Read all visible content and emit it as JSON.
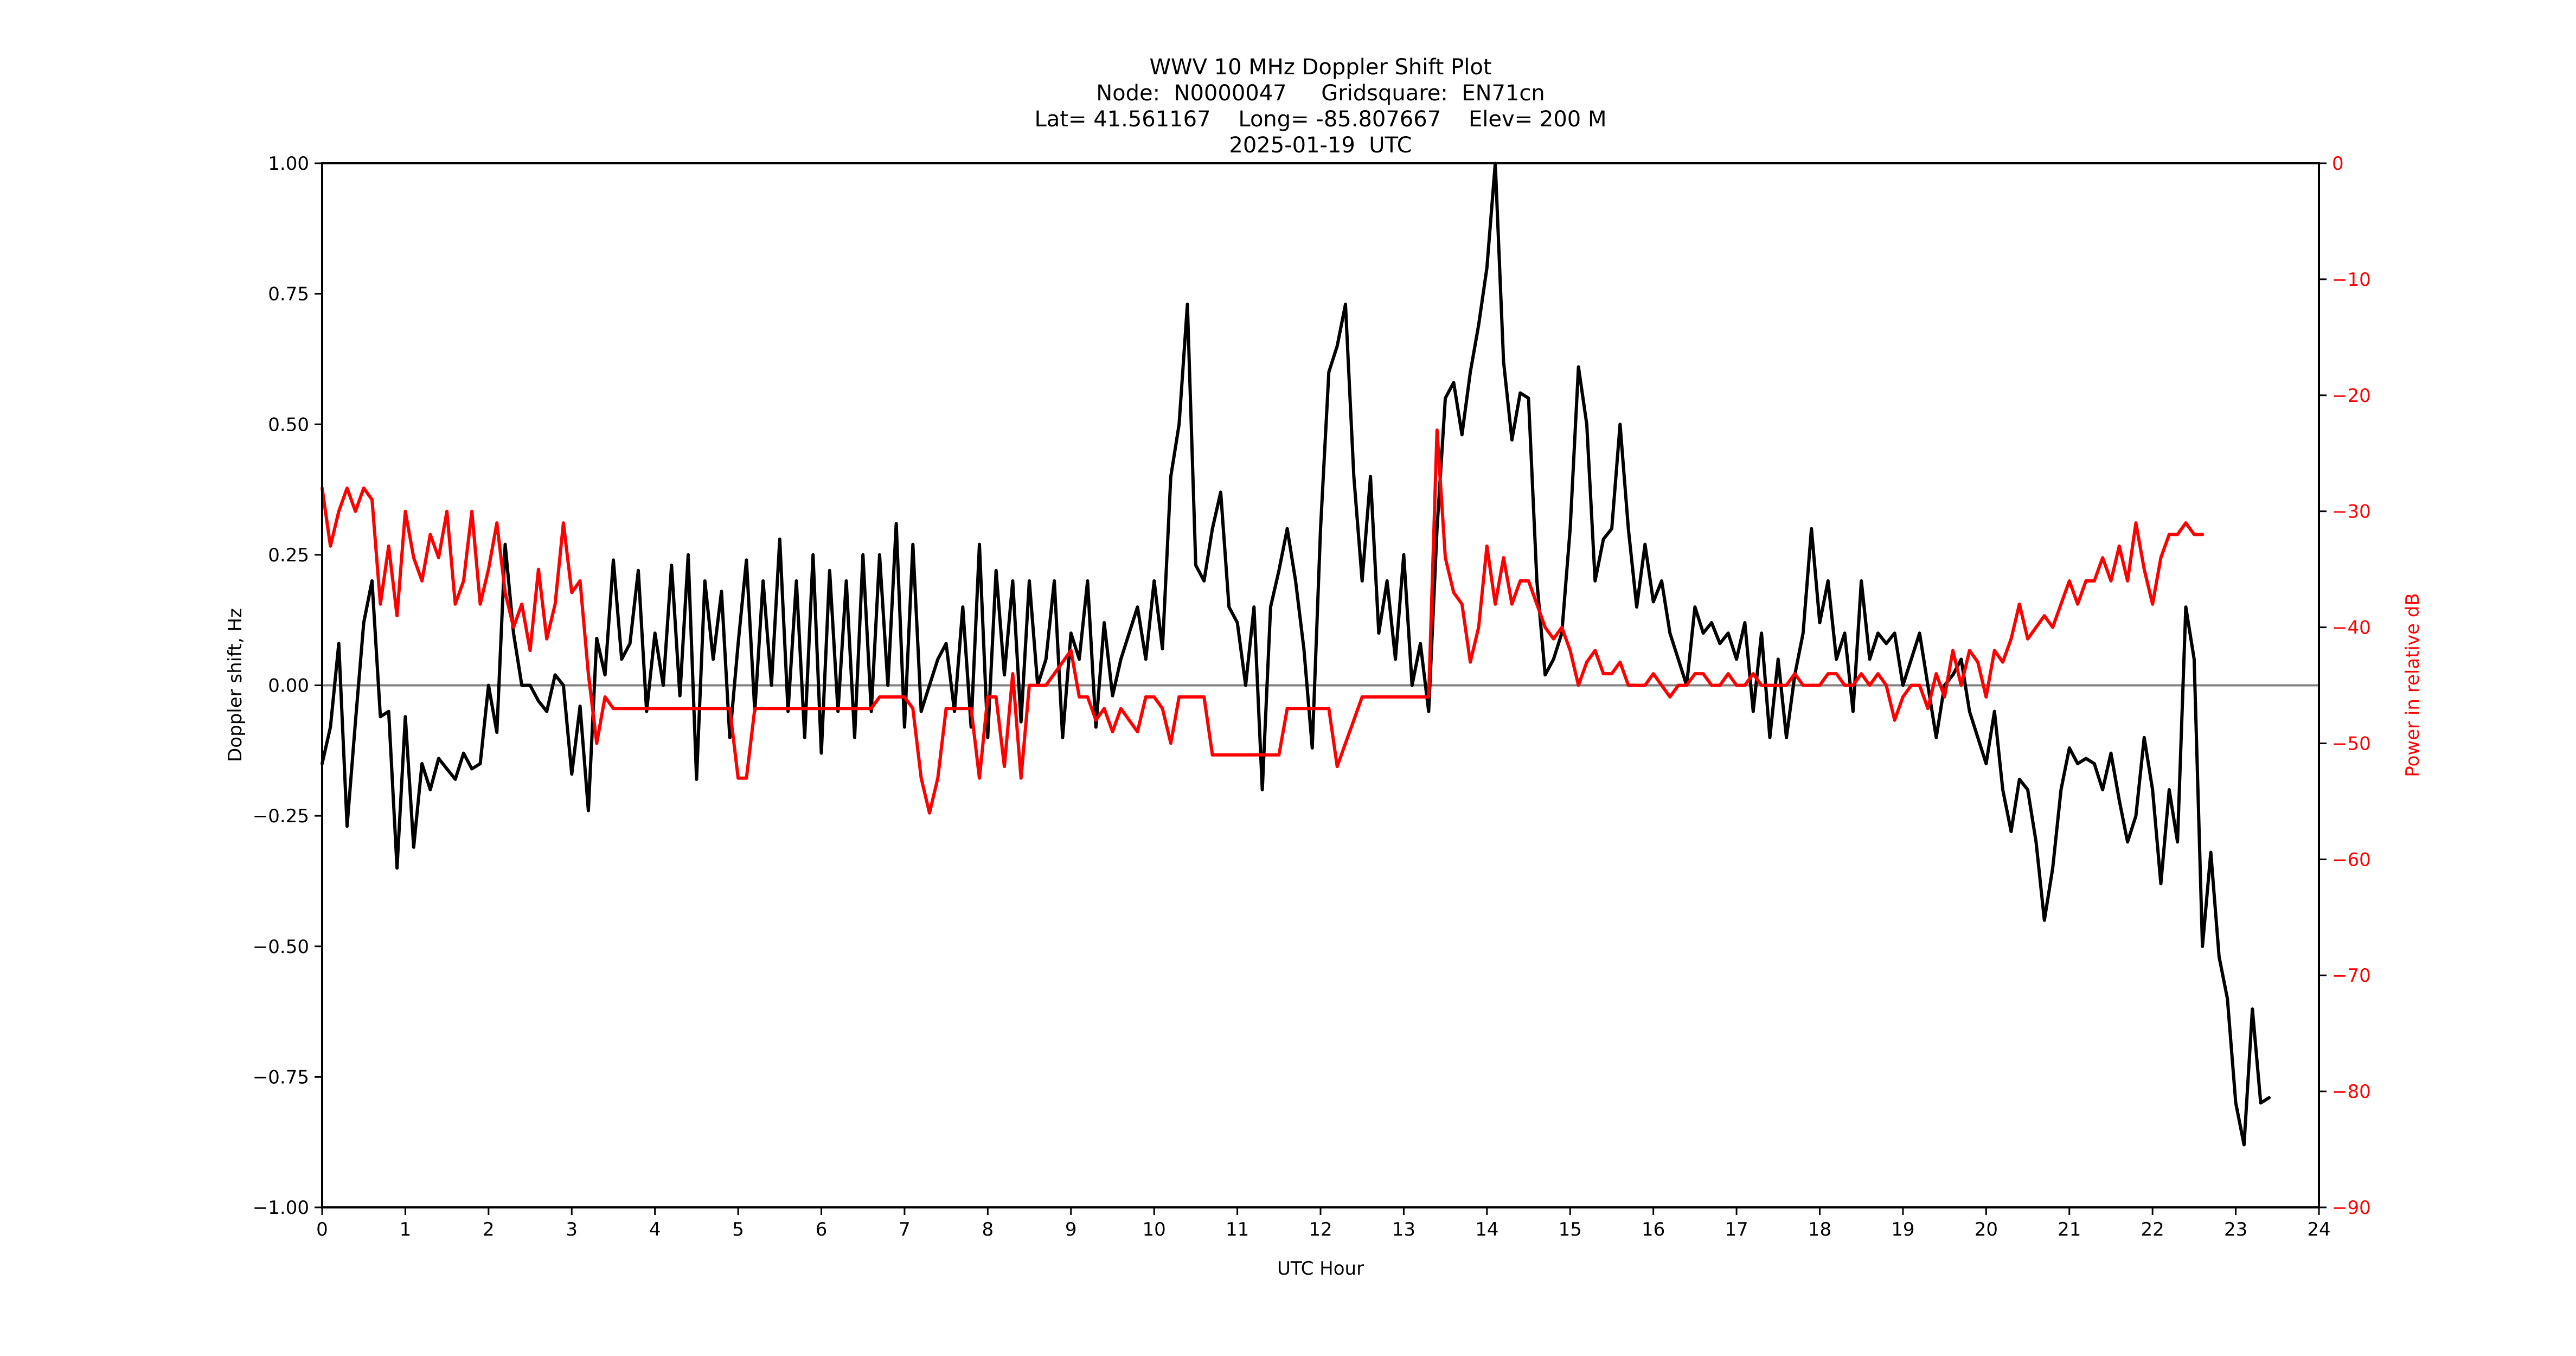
{
  "title": {
    "line1": "WWV 10 MHz Doppler Shift Plot",
    "line2": "Node:  N0000047     Gridsquare:  EN71cn",
    "line3": "Lat= 41.561167    Long= -85.807667    Elev= 200 M",
    "line4": "2025-01-19  UTC"
  },
  "colors": {
    "doppler": "#000000",
    "power": "#ff0000",
    "zero_line": "#808080",
    "axis": "#000000",
    "right_axis_text": "#ff0000"
  },
  "chart_data": {
    "type": "line",
    "title": "WWV 10 MHz Doppler Shift Plot",
    "subtitle": [
      "Node:  N0000047     Gridsquare:  EN71cn",
      "Lat= 41.561167    Long= -85.807667    Elev= 200 M",
      "2025-01-19  UTC"
    ],
    "xlabel": "UTC Hour",
    "ylabel": "Doppler shift, Hz",
    "y2label": "Power in relative dB",
    "xlim": [
      0,
      24
    ],
    "ylim": [
      -1.0,
      1.0
    ],
    "y2lim": [
      -90,
      0
    ],
    "xticks": [
      "0",
      "1",
      "2",
      "3",
      "4",
      "5",
      "6",
      "7",
      "8",
      "9",
      "10",
      "11",
      "12",
      "13",
      "14",
      "15",
      "16",
      "17",
      "18",
      "19",
      "20",
      "21",
      "22",
      "23",
      "24"
    ],
    "yticks": [
      "1.00",
      "0.75",
      "0.50",
      "0.25",
      "0.00",
      "−0.25",
      "−0.50",
      "−0.75",
      "−1.00"
    ],
    "y2ticks": [
      "0",
      "−10",
      "−20",
      "−30",
      "−40",
      "−50",
      "−60",
      "−70",
      "−80",
      "−90"
    ],
    "grid": false,
    "zero_line": 0.0,
    "x_step_hours": 0.1,
    "series": [
      {
        "name": "Doppler shift",
        "axis": "left",
        "color": "#000000",
        "values": [
          -0.15,
          -0.08,
          0.08,
          -0.27,
          -0.07,
          0.12,
          0.2,
          -0.06,
          -0.05,
          -0.35,
          -0.06,
          -0.31,
          -0.15,
          -0.2,
          -0.14,
          -0.16,
          -0.18,
          -0.13,
          -0.16,
          -0.15,
          0.0,
          -0.09,
          0.27,
          0.1,
          0.0,
          0.0,
          -0.03,
          -0.05,
          0.02,
          0.0,
          -0.17,
          -0.04,
          -0.24,
          0.09,
          0.02,
          0.24,
          0.05,
          0.08,
          0.22,
          -0.05,
          0.1,
          0.0,
          0.23,
          -0.02,
          0.25,
          -0.18,
          0.2,
          0.05,
          0.18,
          -0.1,
          0.08,
          0.24,
          -0.05,
          0.2,
          0.0,
          0.28,
          -0.05,
          0.2,
          -0.1,
          0.25,
          -0.13,
          0.22,
          -0.05,
          0.2,
          -0.1,
          0.25,
          -0.05,
          0.25,
          0.0,
          0.31,
          -0.08,
          0.27,
          -0.05,
          0.0,
          0.05,
          0.08,
          -0.05,
          0.15,
          -0.08,
          0.27,
          -0.1,
          0.22,
          0.02,
          0.2,
          -0.07,
          0.2,
          0.0,
          0.05,
          0.2,
          -0.1,
          0.1,
          0.05,
          0.2,
          -0.08,
          0.12,
          -0.02,
          0.05,
          0.1,
          0.15,
          0.05,
          0.2,
          0.07,
          0.4,
          0.5,
          0.73,
          0.23,
          0.2,
          0.3,
          0.37,
          0.15,
          0.12,
          0.0,
          0.15,
          -0.2,
          0.15,
          0.22,
          0.3,
          0.2,
          0.07,
          -0.12,
          0.3,
          0.6,
          0.65,
          0.73,
          0.4,
          0.2,
          0.4,
          0.1,
          0.2,
          0.05,
          0.25,
          0.0,
          0.08,
          -0.05,
          0.3,
          0.55,
          0.58,
          0.48,
          0.6,
          0.69,
          0.8,
          1.0,
          0.62,
          0.47,
          0.56,
          0.55,
          0.2,
          0.02,
          0.05,
          0.1,
          0.3,
          0.61,
          0.5,
          0.2,
          0.28,
          0.3,
          0.5,
          0.3,
          0.15,
          0.27,
          0.16,
          0.2,
          0.1,
          0.05,
          0.0,
          0.15,
          0.1,
          0.12,
          0.08,
          0.1,
          0.05,
          0.12,
          -0.05,
          0.1,
          -0.1,
          0.05,
          -0.1,
          0.02,
          0.1,
          0.3,
          0.12,
          0.2,
          0.05,
          0.1,
          -0.05,
          0.2,
          0.05,
          0.1,
          0.08,
          0.1,
          0.0,
          0.05,
          0.1,
          0.0,
          -0.1,
          0.0,
          0.02,
          0.05,
          -0.05,
          -0.1,
          -0.15,
          -0.05,
          -0.2,
          -0.28,
          -0.18,
          -0.2,
          -0.3,
          -0.45,
          -0.35,
          -0.2,
          -0.12,
          -0.15,
          -0.14,
          -0.15,
          -0.2,
          -0.13,
          -0.22,
          -0.3,
          -0.25,
          -0.1,
          -0.2,
          -0.38,
          -0.2,
          -0.3,
          0.15,
          0.05,
          -0.5,
          -0.32,
          -0.52,
          -0.6,
          -0.8,
          -0.88,
          -0.62,
          -0.8,
          -0.79
        ]
      },
      {
        "name": "Power (relative dB)",
        "axis": "right",
        "color": "#ff0000",
        "values": [
          -28,
          -33,
          -30,
          -28,
          -30,
          -28,
          -29,
          -38,
          -33,
          -39,
          -30,
          -34,
          -36,
          -32,
          -34,
          -30,
          -38,
          -36,
          -30,
          -38,
          -35,
          -31,
          -37,
          -40,
          -38,
          -42,
          -35,
          -41,
          -38,
          -31,
          -37,
          -36,
          -44,
          -50,
          -46,
          -47,
          -47,
          -47,
          -47,
          -47,
          -47,
          -47,
          -47,
          -47,
          -47,
          -47,
          -47,
          -47,
          -47,
          -47,
          -53,
          -53,
          -47,
          -47,
          -47,
          -47,
          -47,
          -47,
          -47,
          -47,
          -47,
          -47,
          -47,
          -47,
          -47,
          -47,
          -47,
          -46,
          -46,
          -46,
          -46,
          -47,
          -53,
          -56,
          -53,
          -47,
          -47,
          -47,
          -47,
          -53,
          -46,
          -46,
          -52,
          -44,
          -53,
          -45,
          -45,
          -45,
          -44,
          -43,
          -42,
          -46,
          -46,
          -48,
          -47,
          -49,
          -47,
          -48,
          -49,
          -46,
          -46,
          -47,
          -50,
          -46,
          -46,
          -46,
          -46,
          -51,
          -51,
          -51,
          -51,
          -51,
          -51,
          -51,
          -51,
          -51,
          -47,
          -47,
          -47,
          -47,
          -47,
          -47,
          -52,
          -50,
          -48,
          -46,
          -46,
          -46,
          -46,
          -46,
          -46,
          -46,
          -46,
          -46,
          -23,
          -34,
          -37,
          -38,
          -43,
          -40,
          -33,
          -38,
          -34,
          -38,
          -36,
          -36,
          -38,
          -40,
          -41,
          -40,
          -42,
          -45,
          -43,
          -42,
          -44,
          -44,
          -43,
          -45,
          -45,
          -45,
          -44,
          -45,
          -46,
          -45,
          -45,
          -44,
          -44,
          -45,
          -45,
          -44,
          -45,
          -45,
          -44,
          -45,
          -45,
          -45,
          -45,
          -44,
          -45,
          -45,
          -45,
          -44,
          -44,
          -45,
          -45,
          -44,
          -45,
          -44,
          -45,
          -48,
          -46,
          -45,
          -45,
          -47,
          -44,
          -46,
          -42,
          -45,
          -42,
          -43,
          -46,
          -42,
          -43,
          -41,
          -38,
          -41,
          -40,
          -39,
          -40,
          -38,
          -36,
          -38,
          -36,
          -36,
          -34,
          -36,
          -33,
          -36,
          -31,
          -35,
          -38,
          -34,
          -32,
          -32,
          -31,
          -32,
          -32
        ]
      }
    ]
  }
}
